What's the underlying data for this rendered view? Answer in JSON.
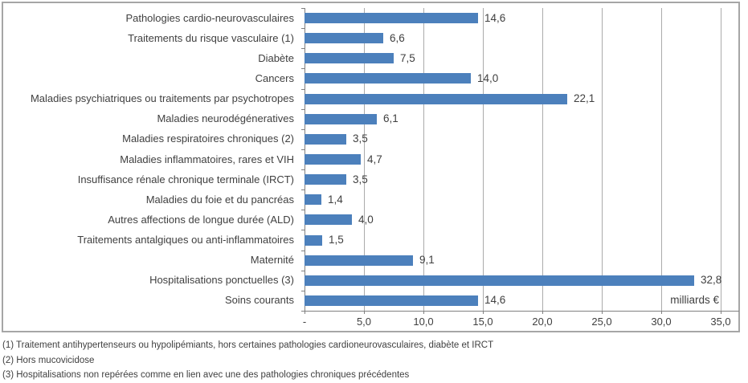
{
  "chart_data": {
    "type": "bar",
    "orientation": "horizontal",
    "categories": [
      "Pathologies cardio-neurovasculaires",
      "Traitements du risque vasculaire (1)",
      "Diabète",
      "Cancers",
      "Maladies psychiatriques ou traitements par psychotropes",
      "Maladies neurodégéneratives",
      "Maladies respiratoires chroniques (2)",
      "Maladies inflammatoires, rares et VIH",
      "Insuffisance rénale chronique terminale (IRCT)",
      "Maladies du foie et du pancréas",
      "Autres affections de longue durée (ALD)",
      "Traitements antalgiques ou anti-inflammatoires",
      "Maternité",
      "Hospitalisations ponctuelles (3)",
      "Soins courants"
    ],
    "values": [
      14.6,
      6.6,
      7.5,
      14.0,
      22.1,
      6.1,
      3.5,
      4.7,
      3.5,
      1.4,
      4.0,
      1.5,
      9.1,
      32.8,
      14.6
    ],
    "value_labels": [
      "14,6",
      "6,6",
      "7,5",
      "14,0",
      "22,1",
      "6,1",
      "3,5",
      "4,7",
      "3,5",
      "1,4",
      "4,0",
      "1,5",
      "9,1",
      "32,8",
      "14,6"
    ],
    "x_tick_labels": [
      "-",
      "5,0",
      "10,0",
      "15,0",
      "20,0",
      "25,0",
      "30,0",
      "35,0"
    ],
    "x_tick_values": [
      0,
      5,
      10,
      15,
      20,
      25,
      30,
      35
    ],
    "xlim": [
      0,
      35
    ],
    "unit_label": "milliards €",
    "grid": true,
    "legend": "none",
    "bar_color": "#4c80bc",
    "gridline_color": "#ababab",
    "axis_color": "#808080",
    "text_color": "#404040",
    "frame_color": "#a6a6a6"
  },
  "footnotes": [
    "(1) Traitement antihypertenseurs ou hypolipémiants, hors certaines pathologies cardioneurovasculaires, diabète et IRCT",
    "(2) Hors mucovicidose",
    "(3) Hospitalisations non repérées comme en lien avec une des pathologies chroniques précédentes"
  ]
}
